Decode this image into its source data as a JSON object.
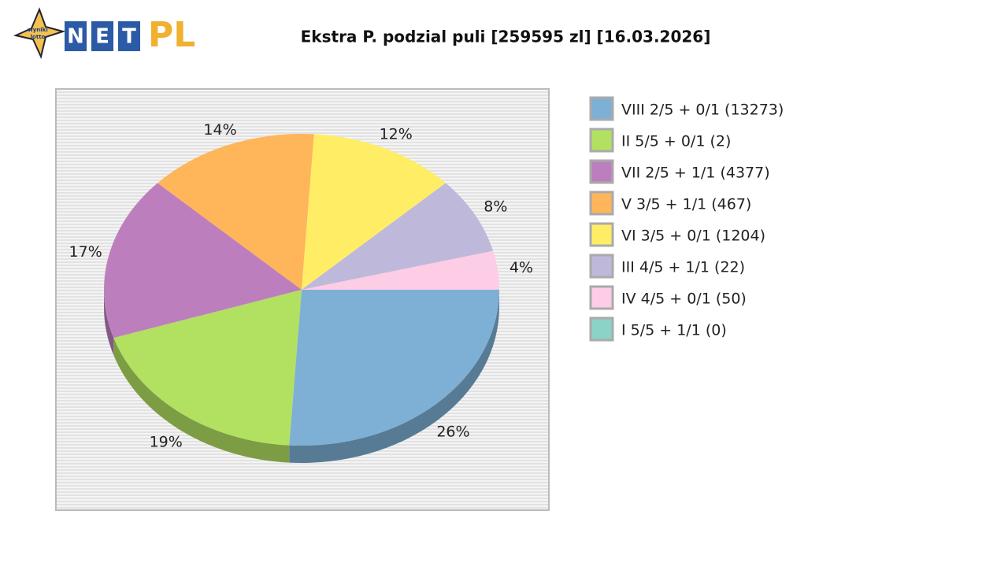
{
  "logo": {
    "badge": [
      "wyniki",
      "lotto"
    ],
    "letters": [
      "N",
      "E",
      "T"
    ],
    "accent": "PL"
  },
  "chart_data": {
    "type": "pie",
    "title": "Ekstra P. podzial puli [259595 zl] [16.03.2026]",
    "categories": [
      "VIII 2/5 + 0/1 (13273)",
      "II 5/5 + 0/1 (2)",
      "VII 2/5 + 1/1 (4377)",
      "V 3/5 + 1/1 (467)",
      "VI 3/5 + 0/1 (1204)",
      "III 4/5 + 1/1 (22)",
      "IV 4/5 + 0/1 (50)",
      "I 5/5 + 1/1 (0)"
    ],
    "values": [
      26,
      19,
      17,
      14,
      12,
      8,
      4,
      0
    ],
    "value_labels": [
      "26%",
      "19%",
      "17%",
      "14%",
      "12%",
      "8%",
      "4%",
      null
    ],
    "colors": [
      "#7eb0d5",
      "#b2e061",
      "#bd7ebe",
      "#ffb55a",
      "#ffee65",
      "#beb9db",
      "#fdcce5",
      "#8bd3c7"
    ],
    "legend": "right"
  }
}
